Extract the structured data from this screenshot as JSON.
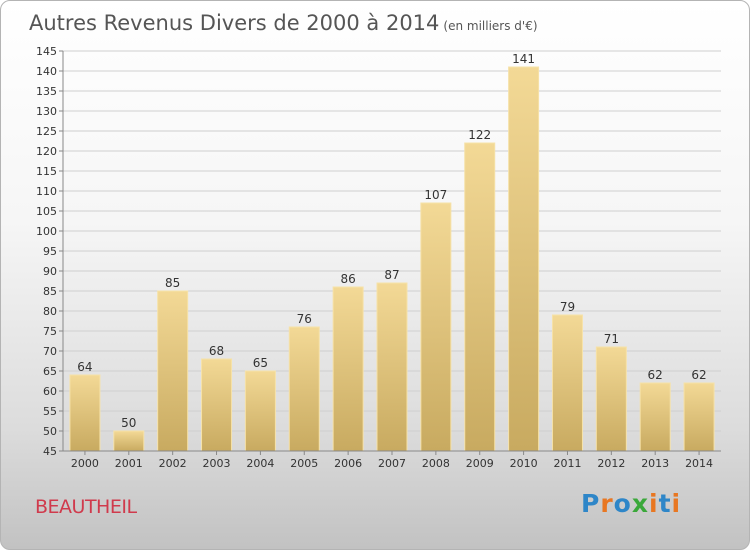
{
  "chart_data": {
    "type": "bar",
    "title": "Autres Revenus Divers de 2000 à 2014",
    "subtitle": "(en milliers d'€)",
    "categories": [
      "2000",
      "2001",
      "2002",
      "2003",
      "2004",
      "2005",
      "2006",
      "2007",
      "2008",
      "2009",
      "2010",
      "2011",
      "2012",
      "2013",
      "2014"
    ],
    "values": [
      64,
      50,
      85,
      68,
      65,
      76,
      86,
      87,
      107,
      122,
      141,
      79,
      71,
      62,
      62
    ],
    "ylim": [
      45,
      145
    ],
    "yticks": [
      45,
      50,
      55,
      60,
      65,
      70,
      75,
      80,
      85,
      90,
      95,
      100,
      105,
      110,
      115,
      120,
      125,
      130,
      135,
      140,
      145
    ],
    "grid": true,
    "bar_color": "#e8cc84"
  },
  "footer": {
    "location": "BEAUTHEIL",
    "logo": "Proxiti"
  }
}
